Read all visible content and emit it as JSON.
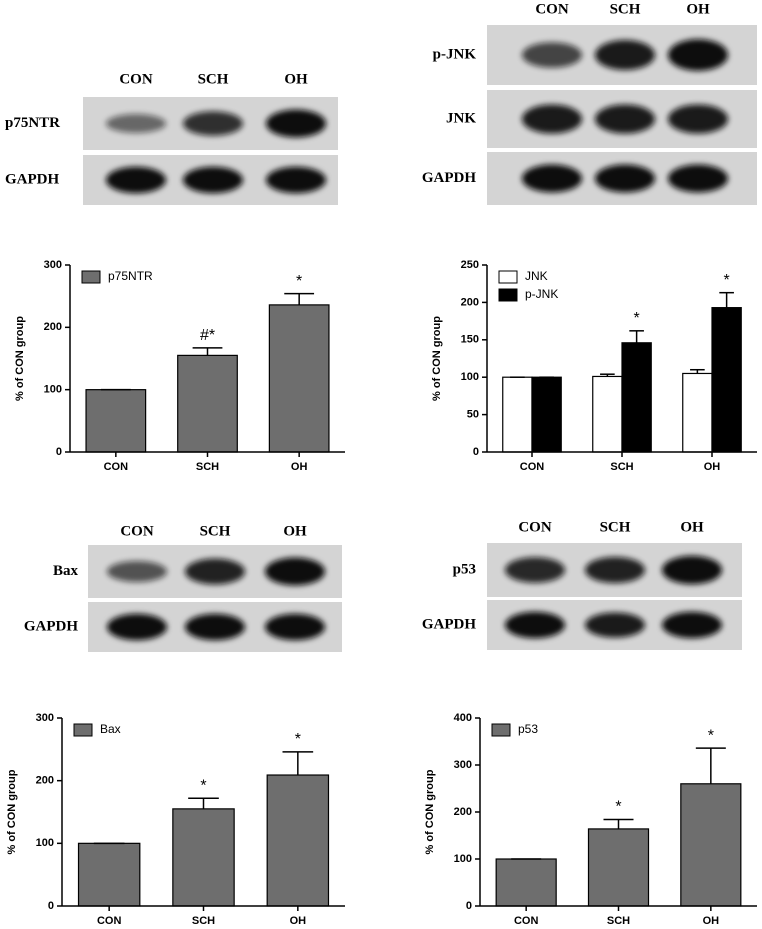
{
  "blots": [
    {
      "lanes": [
        "CON",
        "SCH",
        "OH"
      ],
      "rows": [
        "p75NTR",
        "GAPDH"
      ]
    },
    {
      "lanes": [
        "CON",
        "SCH",
        "OH"
      ],
      "rows": [
        "p-JNK",
        "JNK",
        "GAPDH"
      ]
    },
    {
      "lanes": [
        "CON",
        "SCH",
        "OH"
      ],
      "rows": [
        "Bax",
        "GAPDH"
      ]
    },
    {
      "lanes": [
        "CON",
        "SCH",
        "OH"
      ],
      "rows": [
        "p53",
        "GAPDH"
      ]
    }
  ],
  "chart_data": [
    {
      "type": "bar",
      "ylabel": "% of CON group",
      "categories": [
        "CON",
        "SCH",
        "OH"
      ],
      "series": [
        {
          "name": "p75NTR",
          "color": "#6e6e6e",
          "values": [
            100,
            155,
            236
          ],
          "errors": [
            0,
            12,
            18
          ],
          "annotations": [
            null,
            "#*",
            "*"
          ]
        }
      ],
      "ylim": [
        0,
        300
      ],
      "yticks": [
        0,
        100,
        200,
        300
      ],
      "legend": "top-left"
    },
    {
      "type": "bar",
      "ylabel": "% of CON group",
      "categories": [
        "CON",
        "SCH",
        "OH"
      ],
      "series": [
        {
          "name": "JNK",
          "color": "#ffffff",
          "values": [
            100,
            101,
            105
          ],
          "errors": [
            0,
            3,
            5
          ],
          "annotations": [
            null,
            null,
            null
          ]
        },
        {
          "name": "p-JNK",
          "color": "#000000",
          "values": [
            100,
            146,
            193
          ],
          "errors": [
            0,
            16,
            20
          ],
          "annotations": [
            null,
            "*",
            "*"
          ]
        }
      ],
      "ylim": [
        0,
        250
      ],
      "yticks": [
        0,
        50,
        100,
        150,
        200,
        250
      ],
      "legend": "top-left"
    },
    {
      "type": "bar",
      "ylabel": "% of CON group",
      "categories": [
        "CON",
        "SCH",
        "OH"
      ],
      "series": [
        {
          "name": "Bax",
          "color": "#6e6e6e",
          "values": [
            100,
            155,
            209
          ],
          "errors": [
            0,
            17,
            37
          ],
          "annotations": [
            null,
            "*",
            "*"
          ]
        }
      ],
      "ylim": [
        0,
        300
      ],
      "yticks": [
        0,
        100,
        200,
        300
      ],
      "legend": "top-left"
    },
    {
      "type": "bar",
      "ylabel": "% of CON group",
      "categories": [
        "CON",
        "SCH",
        "OH"
      ],
      "series": [
        {
          "name": "p53",
          "color": "#6e6e6e",
          "values": [
            100,
            164,
            260
          ],
          "errors": [
            0,
            20,
            76
          ],
          "annotations": [
            null,
            "*",
            "*"
          ]
        }
      ],
      "ylim": [
        0,
        400
      ],
      "yticks": [
        0,
        100,
        200,
        300,
        400
      ],
      "legend": "top-left"
    }
  ]
}
